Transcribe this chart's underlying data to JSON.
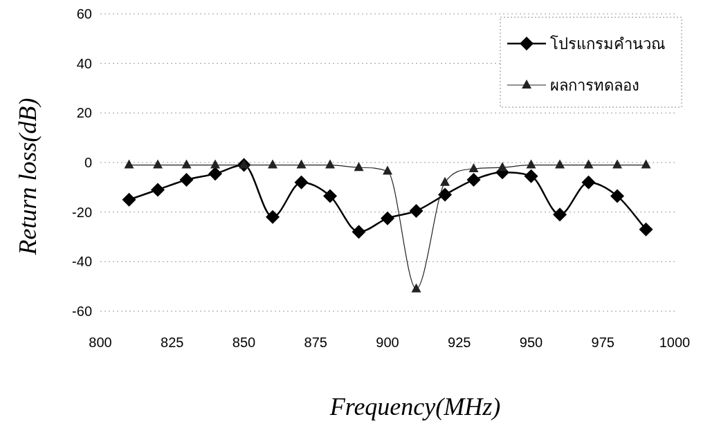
{
  "chart_data": {
    "type": "line",
    "xlabel": "Frequency(MHz)",
    "ylabel": "Return loss(dB)",
    "x": [
      810,
      820,
      830,
      840,
      850,
      860,
      870,
      880,
      890,
      900,
      910,
      920,
      930,
      940,
      950,
      960,
      970,
      980,
      990
    ],
    "series": [
      {
        "name": "โปรแกรมคำนวณ",
        "color": "#000000",
        "marker": "diamond",
        "values": [
          -15,
          -11,
          -7,
          -4.5,
          -1,
          -22,
          -8,
          -13.5,
          -28,
          -22.5,
          -19.5,
          -13,
          -7,
          -4,
          -5.5,
          -21,
          -8,
          -13.5,
          -27
        ]
      },
      {
        "name": "ผลการทดลอง",
        "color": "#222222",
        "marker": "triangle",
        "values": [
          -1,
          -1,
          -1,
          -1,
          -1,
          -1,
          -1,
          -1,
          -2,
          -3.5,
          -51,
          -8,
          -2.5,
          -2,
          -1,
          -1,
          -1,
          -1,
          -1
        ]
      }
    ],
    "xlim": [
      800,
      1000
    ],
    "xticks": [
      800,
      825,
      850,
      875,
      900,
      925,
      950,
      975,
      1000
    ],
    "ylim": [
      -60,
      60
    ],
    "yticks": [
      -60,
      -40,
      -20,
      0,
      20,
      40,
      60
    ],
    "grid": "y",
    "legend": "top right",
    "line_style": "solid"
  }
}
